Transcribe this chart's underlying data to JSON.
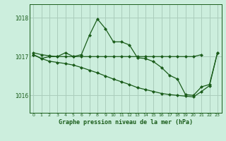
{
  "xlabel": "Graphe pression niveau de la mer (hPa)",
  "bg_color": "#cceedd",
  "grid_color": "#aaccbb",
  "line_color": "#1a5c1a",
  "ylim": [
    1015.55,
    1018.35
  ],
  "xlim": [
    -0.5,
    23.5
  ],
  "yticks": [
    1016,
    1017,
    1018
  ],
  "xticks": [
    0,
    1,
    2,
    3,
    4,
    5,
    6,
    7,
    8,
    9,
    10,
    11,
    12,
    13,
    14,
    15,
    16,
    17,
    18,
    19,
    20,
    21,
    22,
    23
  ],
  "line_flat": [
    1017.1,
    1017.05,
    1017.02,
    1017.0,
    1017.0,
    1017.0,
    1017.0,
    1017.0,
    1017.0,
    1017.0,
    1017.0,
    1017.0,
    1017.0,
    1017.0,
    1017.0,
    1017.0,
    1017.0,
    1017.0,
    1017.0,
    1017.0,
    1017.0,
    1017.05,
    null,
    null
  ],
  "line_peak": [
    1017.05,
    1016.95,
    1017.0,
    1017.0,
    1017.1,
    1017.0,
    1017.05,
    1017.55,
    1017.97,
    1017.72,
    1017.38,
    1017.38,
    1017.3,
    1016.97,
    1016.95,
    1016.87,
    1016.72,
    1016.52,
    1016.42,
    1016.02,
    1016.0,
    1016.22,
    1016.28,
    1017.1
  ],
  "line_low": [
    1017.05,
    1016.95,
    1016.88,
    1016.85,
    1016.82,
    1016.78,
    1016.72,
    1016.65,
    1016.58,
    1016.5,
    1016.42,
    1016.35,
    1016.28,
    1016.2,
    1016.15,
    1016.1,
    1016.05,
    1016.02,
    1016.0,
    1015.98,
    1015.96,
    1016.1,
    1016.25,
    1017.1
  ],
  "marker": "D",
  "markersize": 2.0,
  "linewidth": 0.9
}
